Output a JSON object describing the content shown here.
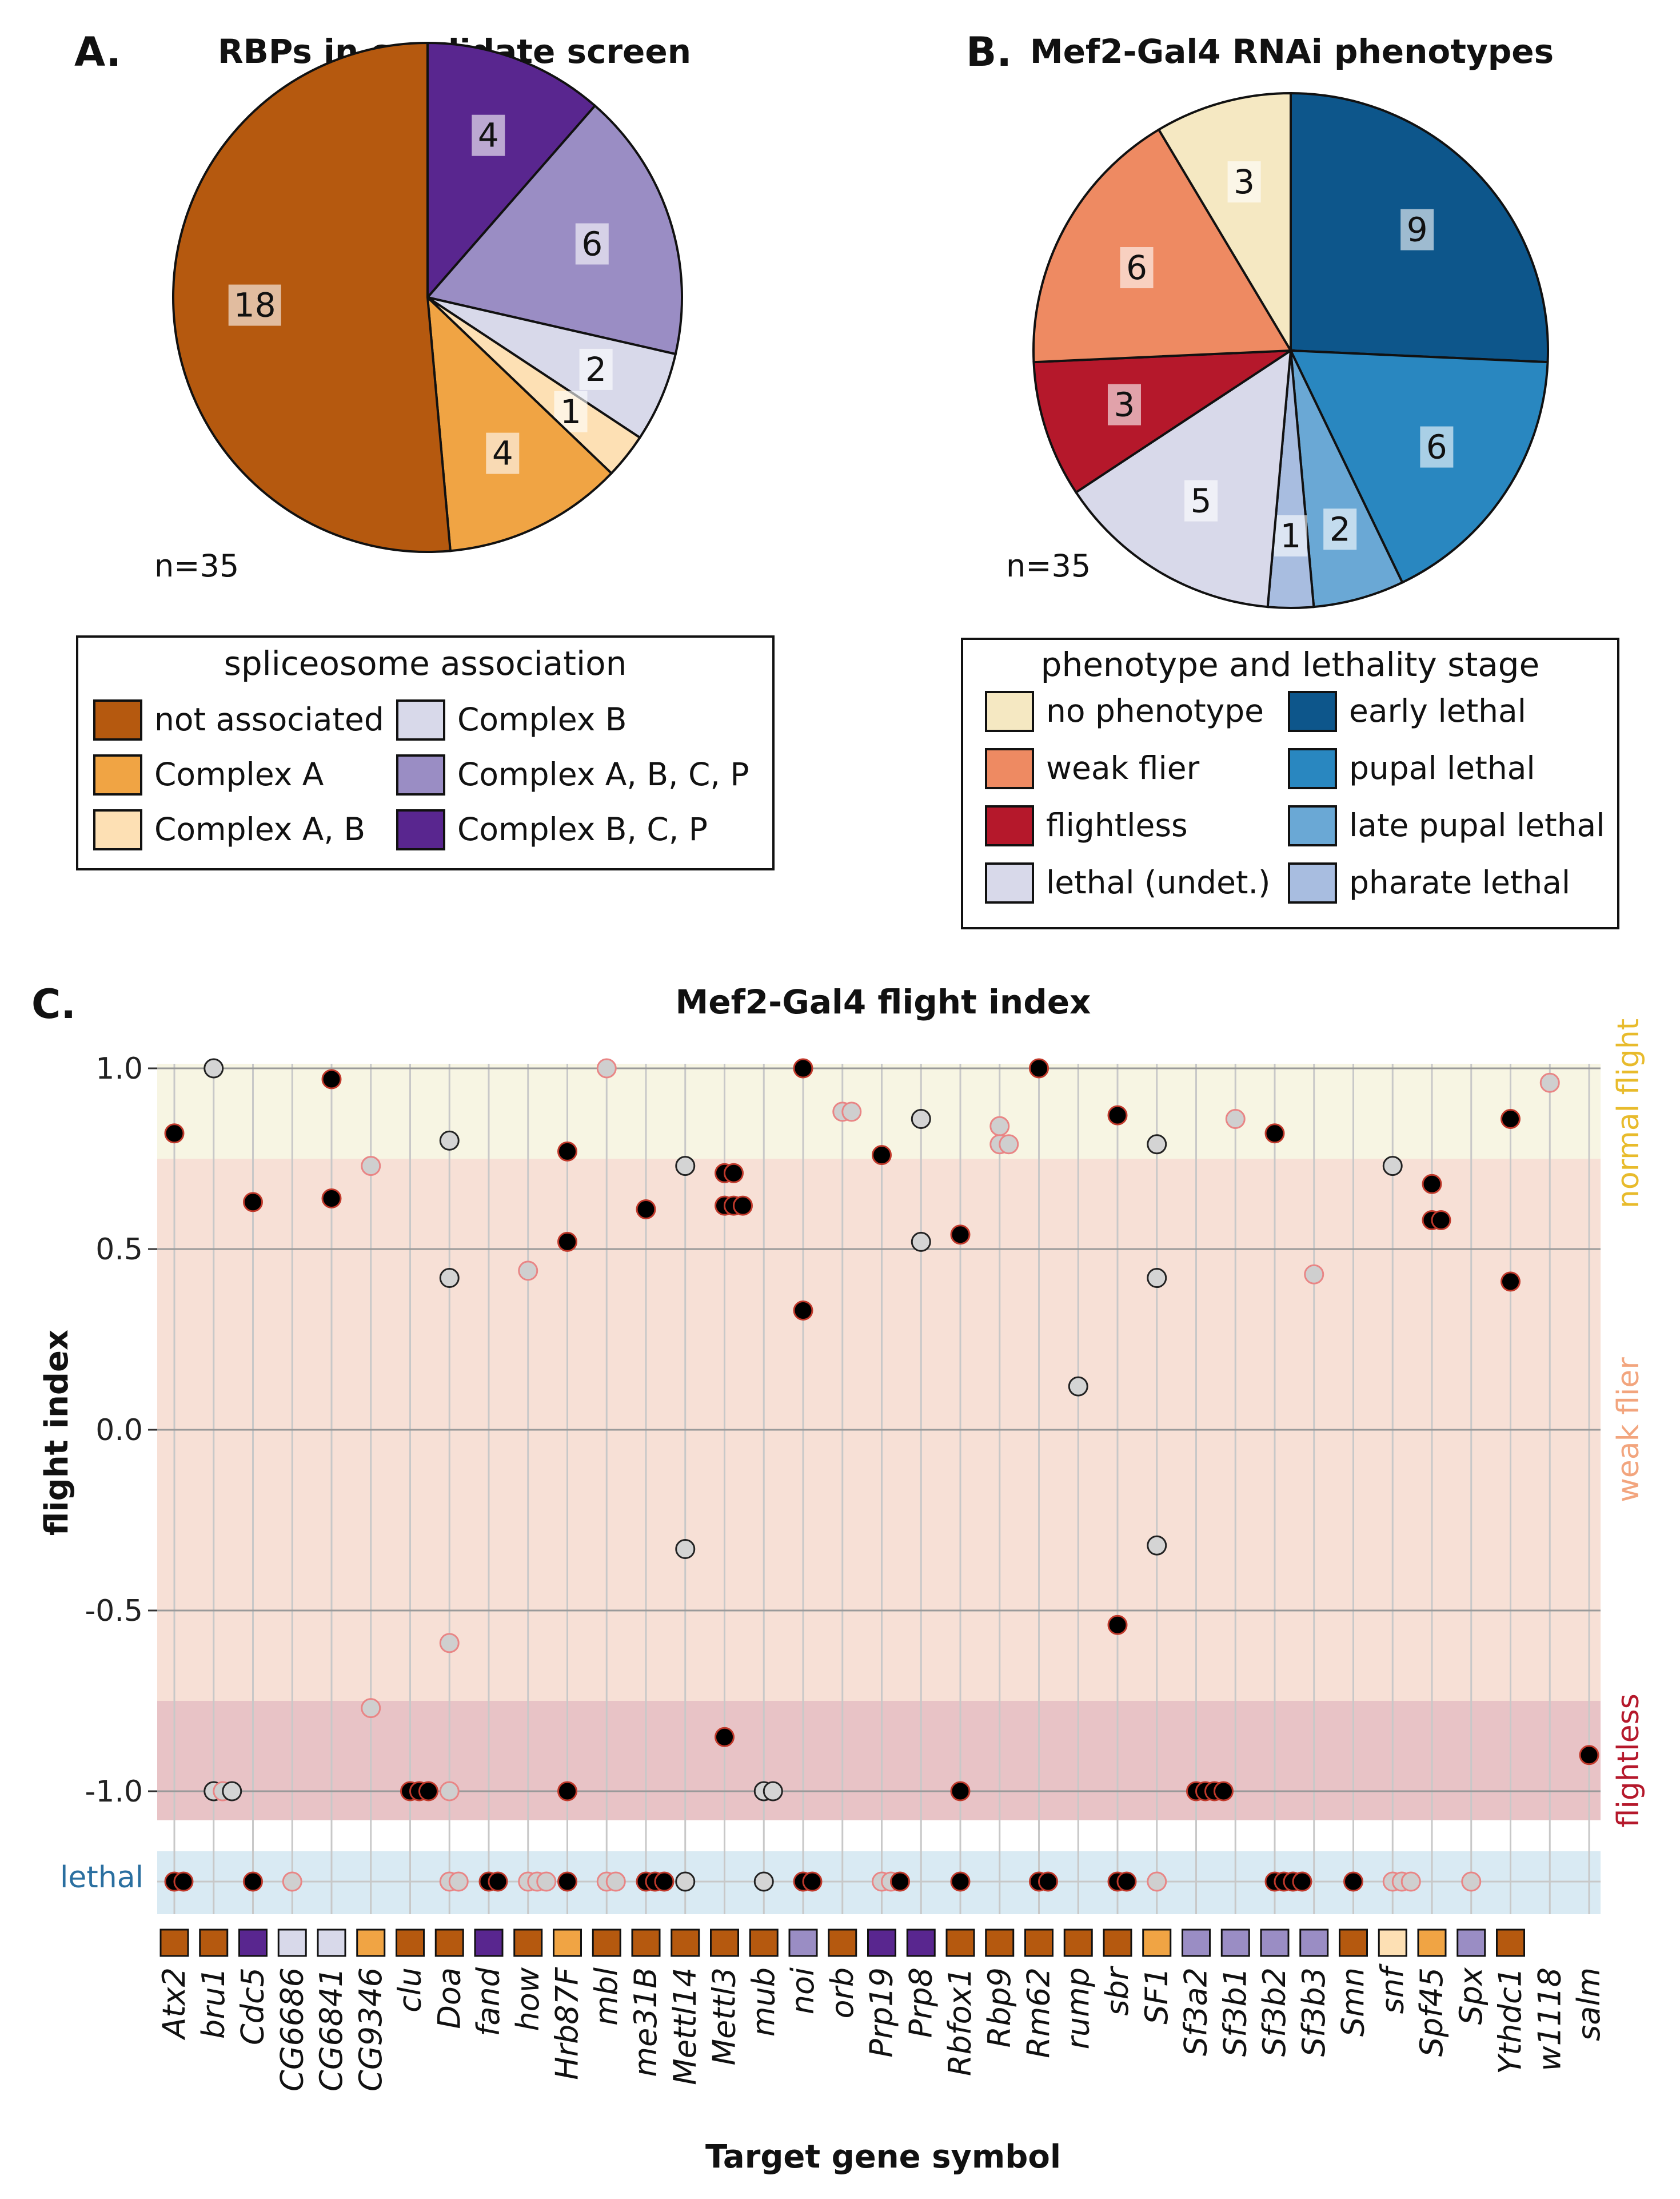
{
  "panel_a": {
    "letter": "A.",
    "n_label": "n=35",
    "legend_title": "spliceosome association"
  },
  "panel_b": {
    "letter": "B.",
    "n_label": "n=35",
    "legend_title": "phenotype and lethality stage"
  },
  "panel_c": {
    "letter": "C.",
    "lethal_label": "lethal"
  },
  "chart_data": [
    {
      "type": "pie",
      "title": "RBPs in candidate screen",
      "slices": [
        {
          "label": "not associated",
          "value": 18,
          "color": "#b5590f"
        },
        {
          "label": "Complex A",
          "value": 4,
          "color": "#f0a444"
        },
        {
          "label": "Complex A, B",
          "value": 1,
          "color": "#fde0b4"
        },
        {
          "label": "Complex B",
          "value": 2,
          "color": "#d8d9ea"
        },
        {
          "label": "Complex A, B, C, P",
          "value": 6,
          "color": "#9a8dc4"
        },
        {
          "label": "Complex B, C, P",
          "value": 4,
          "color": "#59268f"
        }
      ],
      "draw_order": [
        "Complex B, C, P",
        "Complex A, B, C, P",
        "Complex B",
        "Complex A, B",
        "Complex A",
        "not associated"
      ],
      "legend": [
        [
          "not associated",
          "Complex B"
        ],
        [
          "Complex A",
          "Complex A, B, C, P"
        ],
        [
          "Complex A, B",
          "Complex B, C, P"
        ]
      ]
    },
    {
      "type": "pie",
      "title": "Mef2-Gal4 RNAi phenotypes",
      "slices": [
        {
          "label": "no phenotype",
          "value": 3,
          "color": "#f5e8c2"
        },
        {
          "label": "weak flier",
          "value": 6,
          "color": "#ee8a62"
        },
        {
          "label": "flightless",
          "value": 3,
          "color": "#b5182b"
        },
        {
          "label": "lethal (undet.)",
          "value": 5,
          "color": "#d8d9ea"
        },
        {
          "label": "early lethal",
          "value": 9,
          "color": "#0d568b"
        },
        {
          "label": "pupal lethal",
          "value": 6,
          "color": "#2987c0"
        },
        {
          "label": "late pupal lethal",
          "value": 2,
          "color": "#6aa8d5"
        },
        {
          "label": "pharate lethal",
          "value": 1,
          "color": "#a8bde0"
        }
      ],
      "draw_order": [
        "early lethal",
        "pupal lethal",
        "late pupal lethal",
        "pharate lethal",
        "lethal (undet.)",
        "flightless",
        "weak flier",
        "no phenotype"
      ],
      "legend": [
        [
          "no phenotype",
          "early lethal"
        ],
        [
          "weak flier",
          "pupal lethal"
        ],
        [
          "flightless",
          "late pupal lethal"
        ],
        [
          "lethal (undet.)",
          "pharate lethal"
        ]
      ]
    },
    {
      "type": "scatter",
      "title": "Mef2-Gal4 flight index",
      "xlabel": "Target gene symbol",
      "ylabel": "flight index",
      "ylim": [
        -1.08,
        1.0
      ],
      "yticks": [
        "1.0",
        "0.5",
        "0.0",
        "-0.5",
        "-1.0"
      ],
      "zones": [
        {
          "label": "normal flight",
          "from": 0.75,
          "to": 1.0,
          "color": "#f7f5e3",
          "text_color": "#e8bb2c"
        },
        {
          "label": "weak flier",
          "from": -0.75,
          "to": 0.75,
          "color": "#f7e0d6",
          "text_color": "#f2a57e"
        },
        {
          "label": "flightless",
          "from": -1.08,
          "to": -0.75,
          "color": "#e8c3c6",
          "text_color": "#b5182b"
        }
      ],
      "point_styles": {
        "black": {
          "fill": "#000000",
          "stroke": "#c0392b"
        },
        "pink": {
          "fill": "#cfcfcf",
          "stroke": "#e98585"
        },
        "grey": {
          "fill": "#d4d4d4",
          "stroke": "#222222"
        }
      },
      "genes": [
        {
          "name": "Atx2",
          "group": "not associated",
          "points": [
            [
              0.82,
              "black"
            ],
            [
              "lethal",
              "black"
            ],
            [
              "lethal",
              "black"
            ]
          ]
        },
        {
          "name": "bru1",
          "group": "not associated",
          "points": [
            [
              1.0,
              "grey"
            ],
            [
              -1.0,
              "grey"
            ],
            [
              -1.0,
              "pink"
            ],
            [
              -1.0,
              "grey"
            ]
          ]
        },
        {
          "name": "Cdc5",
          "group": "Complex B, C, P",
          "points": [
            [
              0.63,
              "black"
            ],
            [
              "lethal",
              "black"
            ]
          ]
        },
        {
          "name": "CG6686",
          "group": "Complex B",
          "points": [
            [
              "lethal",
              "pink"
            ]
          ]
        },
        {
          "name": "CG6841",
          "group": "Complex B",
          "points": [
            [
              0.97,
              "black"
            ],
            [
              0.64,
              "black"
            ]
          ]
        },
        {
          "name": "CG9346",
          "group": "Complex A",
          "points": [
            [
              0.73,
              "pink"
            ],
            [
              -0.77,
              "pink"
            ]
          ]
        },
        {
          "name": "clu",
          "group": "not associated",
          "points": [
            [
              -1.0,
              "black"
            ],
            [
              -1.0,
              "black"
            ],
            [
              -1.0,
              "black"
            ]
          ]
        },
        {
          "name": "Doa",
          "group": "not associated",
          "points": [
            [
              0.8,
              "grey"
            ],
            [
              0.42,
              "grey"
            ],
            [
              -0.59,
              "pink"
            ],
            [
              -1.0,
              "pink"
            ],
            [
              "lethal",
              "pink"
            ],
            [
              "lethal",
              "pink"
            ]
          ]
        },
        {
          "name": "fand",
          "group": "Complex B, C, P",
          "points": [
            [
              "lethal",
              "black"
            ],
            [
              "lethal",
              "black"
            ]
          ]
        },
        {
          "name": "how",
          "group": "not associated",
          "points": [
            [
              0.44,
              "pink"
            ],
            [
              "lethal",
              "pink"
            ],
            [
              "lethal",
              "pink"
            ],
            [
              "lethal",
              "pink"
            ]
          ]
        },
        {
          "name": "Hrb87F",
          "group": "Complex A",
          "points": [
            [
              0.77,
              "black"
            ],
            [
              0.52,
              "black"
            ],
            [
              -1.0,
              "black"
            ],
            [
              "lethal",
              "black"
            ]
          ]
        },
        {
          "name": "mbl",
          "group": "not associated",
          "points": [
            [
              1.0,
              "pink"
            ],
            [
              "lethal",
              "pink"
            ],
            [
              "lethal",
              "pink"
            ]
          ]
        },
        {
          "name": "me31B",
          "group": "not associated",
          "points": [
            [
              0.61,
              "black"
            ],
            [
              "lethal",
              "black"
            ],
            [
              "lethal",
              "black"
            ],
            [
              "lethal",
              "black"
            ]
          ]
        },
        {
          "name": "Mettl14",
          "group": "not associated",
          "points": [
            [
              0.73,
              "grey"
            ],
            [
              -0.33,
              "grey"
            ],
            [
              "lethal",
              "grey"
            ]
          ]
        },
        {
          "name": "Mettl3",
          "group": "not associated",
          "points": [
            [
              0.71,
              "black"
            ],
            [
              0.71,
              "black"
            ],
            [
              0.62,
              "black"
            ],
            [
              0.62,
              "black"
            ],
            [
              0.62,
              "black"
            ],
            [
              -0.85,
              "black"
            ]
          ]
        },
        {
          "name": "mub",
          "group": "not associated",
          "points": [
            [
              -1.0,
              "grey"
            ],
            [
              -1.0,
              "grey"
            ],
            [
              "lethal",
              "grey"
            ]
          ]
        },
        {
          "name": "noi",
          "group": "Complex A, B, C, P",
          "points": [
            [
              1.0,
              "black"
            ],
            [
              0.33,
              "black"
            ],
            [
              "lethal",
              "black"
            ],
            [
              "lethal",
              "black"
            ]
          ]
        },
        {
          "name": "orb",
          "group": "not associated",
          "points": [
            [
              0.88,
              "pink"
            ],
            [
              0.88,
              "pink"
            ]
          ]
        },
        {
          "name": "Prp19",
          "group": "Complex B, C, P",
          "points": [
            [
              0.76,
              "black"
            ],
            [
              "lethal",
              "pink"
            ],
            [
              "lethal",
              "pink"
            ],
            [
              "lethal",
              "black"
            ]
          ]
        },
        {
          "name": "Prp8",
          "group": "Complex B, C, P",
          "points": [
            [
              0.86,
              "grey"
            ],
            [
              0.52,
              "grey"
            ]
          ]
        },
        {
          "name": "Rbfox1",
          "group": "not associated",
          "points": [
            [
              0.54,
              "black"
            ],
            [
              -1.0,
              "black"
            ],
            [
              "lethal",
              "black"
            ]
          ]
        },
        {
          "name": "Rbp9",
          "group": "not associated",
          "points": [
            [
              0.84,
              "pink"
            ],
            [
              0.79,
              "pink"
            ],
            [
              0.79,
              "pink"
            ]
          ]
        },
        {
          "name": "Rm62",
          "group": "not associated",
          "points": [
            [
              1.0,
              "black"
            ],
            [
              "lethal",
              "black"
            ],
            [
              "lethal",
              "black"
            ]
          ]
        },
        {
          "name": "rump",
          "group": "not associated",
          "points": [
            [
              0.12,
              "grey"
            ]
          ]
        },
        {
          "name": "sbr",
          "group": "not associated",
          "points": [
            [
              0.87,
              "black"
            ],
            [
              -0.54,
              "black"
            ],
            [
              "lethal",
              "black"
            ],
            [
              "lethal",
              "black"
            ]
          ]
        },
        {
          "name": "SF1",
          "group": "Complex A",
          "points": [
            [
              0.79,
              "grey"
            ],
            [
              0.42,
              "grey"
            ],
            [
              -0.32,
              "grey"
            ],
            [
              "lethal",
              "pink"
            ]
          ]
        },
        {
          "name": "Sf3a2",
          "group": "Complex A, B, C, P",
          "points": [
            [
              -1.0,
              "black"
            ],
            [
              -1.0,
              "black"
            ],
            [
              -1.0,
              "black"
            ],
            [
              -1.0,
              "black"
            ]
          ]
        },
        {
          "name": "Sf3b1",
          "group": "Complex A, B, C, P",
          "points": [
            [
              0.86,
              "pink"
            ]
          ]
        },
        {
          "name": "Sf3b2",
          "group": "Complex A, B, C, P",
          "points": [
            [
              0.82,
              "black"
            ],
            [
              "lethal",
              "black"
            ],
            [
              "lethal",
              "black"
            ],
            [
              "lethal",
              "black"
            ],
            [
              "lethal",
              "black"
            ]
          ]
        },
        {
          "name": "Sf3b3",
          "group": "Complex A, B, C, P",
          "points": [
            [
              0.43,
              "pink"
            ]
          ]
        },
        {
          "name": "Smn",
          "group": "not associated",
          "points": [
            [
              "lethal",
              "black"
            ]
          ]
        },
        {
          "name": "snf",
          "group": "Complex A, B",
          "points": [
            [
              0.73,
              "grey"
            ],
            [
              "lethal",
              "pink"
            ],
            [
              "lethal",
              "pink"
            ],
            [
              "lethal",
              "pink"
            ]
          ]
        },
        {
          "name": "Spf45",
          "group": "Complex A",
          "points": [
            [
              0.68,
              "black"
            ],
            [
              0.58,
              "black"
            ],
            [
              0.58,
              "black"
            ]
          ]
        },
        {
          "name": "Spx",
          "group": "Complex A, B, C, P",
          "points": [
            [
              "lethal",
              "pink"
            ]
          ]
        },
        {
          "name": "Ythdc1",
          "group": "not associated",
          "points": [
            [
              0.86,
              "black"
            ],
            [
              0.41,
              "black"
            ]
          ]
        },
        {
          "name": "w1118",
          "group": "none",
          "points": [
            [
              0.96,
              "pink"
            ]
          ]
        },
        {
          "name": "salm",
          "group": "none",
          "points": [
            [
              -0.9,
              "black"
            ]
          ]
        }
      ]
    }
  ]
}
